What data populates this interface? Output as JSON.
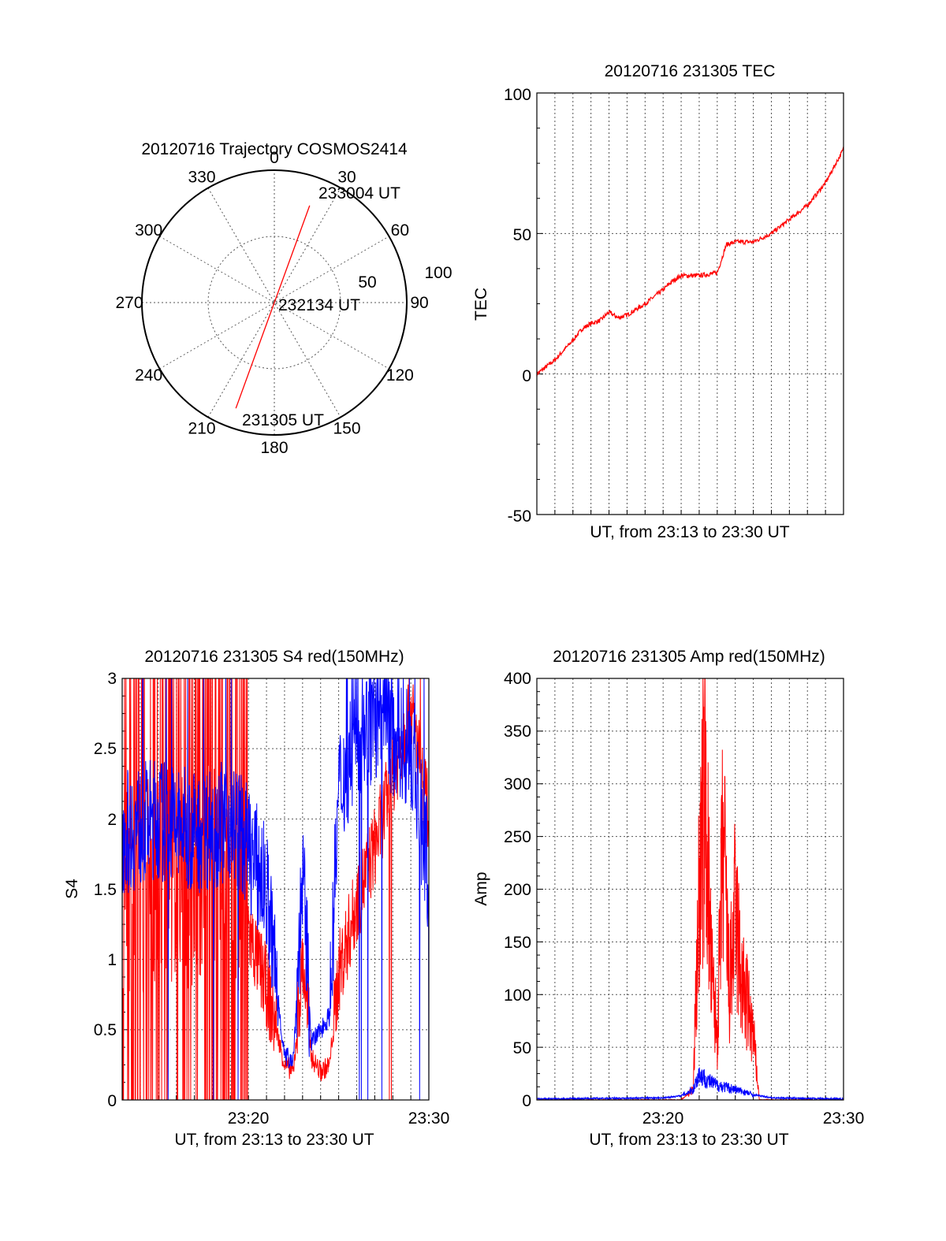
{
  "colors": {
    "red": "#ff0000",
    "blue": "#0000ff",
    "axis": "#000000",
    "grid": "#555555"
  },
  "polar": {
    "title": "20120716 Trajectory COSMOS2414",
    "azimuth_labels": [
      "0",
      "30",
      "60",
      "90",
      "120",
      "150",
      "180",
      "210",
      "240",
      "270",
      "300",
      "330"
    ],
    "radial_labels": [
      "50",
      "100"
    ],
    "annotations": {
      "end": "233004 UT",
      "mid": "232134 UT",
      "start": "231305 UT"
    }
  },
  "tec": {
    "title": "20120716 231305 TEC",
    "xlabel": "UT, from 23:13 to 23:30 UT",
    "ylabel": "TEC",
    "yticks": [
      "100",
      "50",
      "0",
      "-50"
    ]
  },
  "s4": {
    "title": "20120716 231305 S4 red(150MHz)",
    "xlabel": "UT, from 23:13 to 23:30 UT",
    "ylabel": "S4",
    "yticks": [
      "3",
      "2.5",
      "2",
      "1.5",
      "1",
      "0.5",
      "0"
    ],
    "xticks": [
      "23:20",
      "23:30"
    ]
  },
  "amp": {
    "title": "20120716 231305 Amp red(150MHz)",
    "xlabel": "UT, from 23:13 to 23:30 UT",
    "ylabel": "Amp",
    "yticks": [
      "400",
      "350",
      "300",
      "250",
      "200",
      "150",
      "100",
      "50",
      "0"
    ],
    "xticks": [
      "23:20",
      "23:30"
    ]
  },
  "chart_data": [
    {
      "type": "line",
      "title": "20120716 Trajectory COSMOS2414",
      "kind": "polar",
      "rlim": [
        0,
        100
      ],
      "series": [
        {
          "color": "#ff0000",
          "points": [
            {
              "az": 20,
              "el": 78
            },
            {
              "az": 0,
              "el": 0
            },
            {
              "az": 200,
              "el": 85
            }
          ]
        }
      ],
      "annotations": [
        "233004 UT",
        "232134 UT",
        "231305 UT"
      ]
    },
    {
      "type": "line",
      "title": "20120716 231305 TEC",
      "xlabel": "UT, from 23:13 to 23:30 UT",
      "ylabel": "TEC",
      "xlim": [
        "23:13",
        "23:30"
      ],
      "ylim": [
        -50,
        100
      ],
      "grid": true,
      "series": [
        {
          "color": "#ff0000",
          "x": [
            "23:13",
            "23:14",
            "23:15",
            "23:15:30",
            "23:16",
            "23:16:30",
            "23:17",
            "23:17:30",
            "23:18",
            "23:19",
            "23:20",
            "23:20:30",
            "23:21",
            "23:22",
            "23:23",
            "23:23:30",
            "23:24",
            "23:25",
            "23:26",
            "23:27",
            "23:28",
            "23:29",
            "23:30"
          ],
          "y": [
            0,
            5,
            12,
            16,
            18,
            19,
            22,
            20,
            21,
            25,
            30,
            33,
            35,
            35,
            36,
            46,
            47,
            47,
            50,
            55,
            60,
            68,
            80
          ]
        }
      ]
    },
    {
      "type": "line",
      "title": "20120716 231305 S4 red(150MHz)",
      "xlabel": "UT, from 23:13 to 23:30 UT",
      "ylabel": "S4",
      "xlim": [
        "23:13",
        "23:30"
      ],
      "ylim": [
        0,
        3
      ],
      "grid": true,
      "series": [
        {
          "color": "#ff0000",
          "x": [
            "23:13",
            "23:15",
            "23:17",
            "23:19",
            "23:20",
            "23:21",
            "23:22",
            "23:22:30",
            "23:23",
            "23:23:30",
            "23:24",
            "23:24:30",
            "23:25",
            "23:26",
            "23:27",
            "23:28",
            "23:29",
            "23:30"
          ],
          "y": [
            1.5,
            1.6,
            1.5,
            1.7,
            1.2,
            0.8,
            0.25,
            0.2,
            1.0,
            0.3,
            0.2,
            0.25,
            0.9,
            1.4,
            1.8,
            2.3,
            2.8,
            2.0
          ]
        },
        {
          "color": "#0000ff",
          "x": [
            "23:13",
            "23:15",
            "23:17",
            "23:19",
            "23:20",
            "23:21",
            "23:22",
            "23:22:30",
            "23:23",
            "23:23:30",
            "23:24",
            "23:24:30",
            "23:25",
            "23:26",
            "23:27",
            "23:28",
            "23:29",
            "23:30"
          ],
          "y": [
            1.9,
            2.0,
            1.9,
            2.0,
            1.8,
            1.5,
            0.3,
            0.3,
            1.6,
            0.4,
            0.5,
            0.6,
            2.2,
            2.6,
            2.7,
            2.6,
            2.5,
            1.6
          ]
        }
      ]
    },
    {
      "type": "line",
      "title": "20120716 231305 Amp red(150MHz)",
      "xlabel": "UT, from 23:13 to 23:30 UT",
      "ylabel": "Amp",
      "xlim": [
        "23:13",
        "23:30"
      ],
      "ylim": [
        0,
        400
      ],
      "grid": true,
      "series": [
        {
          "color": "#ff0000",
          "x": [
            "23:13",
            "23:21",
            "23:21:40",
            "23:22",
            "23:22:20",
            "23:22:40",
            "23:23",
            "23:23:20",
            "23:23:40",
            "23:24",
            "23:24:20",
            "23:24:40",
            "23:25",
            "23:25:20",
            "23:30"
          ],
          "y": [
            0,
            0,
            10,
            200,
            300,
            120,
            60,
            250,
            100,
            180,
            110,
            90,
            60,
            0,
            0
          ]
        },
        {
          "color": "#0000ff",
          "x": [
            "23:13",
            "23:20",
            "23:21",
            "23:21:40",
            "23:22",
            "23:22:30",
            "23:23",
            "23:24",
            "23:25",
            "23:26",
            "23:30"
          ],
          "y": [
            1,
            2,
            4,
            10,
            25,
            18,
            14,
            10,
            5,
            2,
            1
          ]
        }
      ]
    }
  ]
}
